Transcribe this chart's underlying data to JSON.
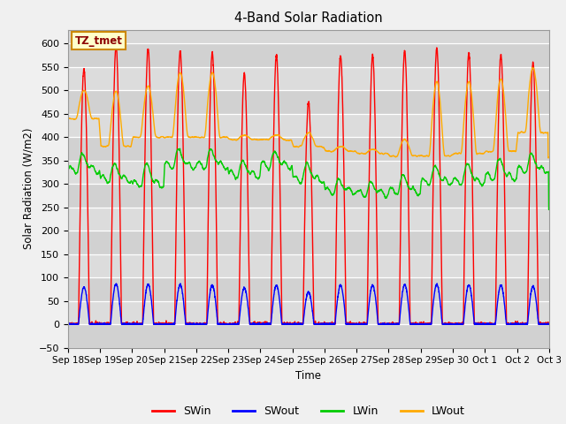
{
  "title": "4-Band Solar Radiation",
  "ylabel": "Solar Radiation (W/m2)",
  "xlabel": "Time",
  "annotation": "TZ_tmet",
  "ylim": [
    -50,
    630
  ],
  "yticks": [
    -50,
    0,
    50,
    100,
    150,
    200,
    250,
    300,
    350,
    400,
    450,
    500,
    550,
    600
  ],
  "colors": {
    "SWin": "#ff0000",
    "SWout": "#0000ff",
    "LWin": "#00cc00",
    "LWout": "#ffaa00"
  },
  "line_width": 1.0,
  "fig_bg": "#f0f0f0",
  "plot_bg": "#d8d8d8",
  "n_days": 15,
  "x_tick_labels": [
    "Sep 18",
    "Sep 19",
    "Sep 20",
    "Sep 21",
    "Sep 22",
    "Sep 23",
    "Sep 24",
    "Sep 25",
    "Sep 26",
    "Sep 27",
    "Sep 28",
    "Sep 29",
    "Sep 30",
    "Oct 1",
    "Oct 2",
    "Oct 3"
  ],
  "SWin_peaks": [
    545,
    595,
    590,
    585,
    580,
    535,
    575,
    475,
    575,
    575,
    585,
    590,
    580,
    575,
    560
  ],
  "LWout_night": [
    440,
    380,
    400,
    400,
    400,
    395,
    395,
    380,
    370,
    365,
    360,
    360,
    365,
    370,
    410
  ],
  "LWout_day_peak": [
    500,
    500,
    510,
    540,
    540,
    405,
    405,
    410,
    380,
    375,
    395,
    520,
    520,
    525,
    550
  ],
  "LWin_base": [
    330,
    310,
    300,
    340,
    340,
    320,
    340,
    310,
    285,
    280,
    285,
    305,
    305,
    315,
    330
  ],
  "LWin_day_bump": [
    30,
    30,
    40,
    30,
    30,
    25,
    25,
    30,
    20,
    20,
    30,
    30,
    35,
    35,
    30
  ]
}
